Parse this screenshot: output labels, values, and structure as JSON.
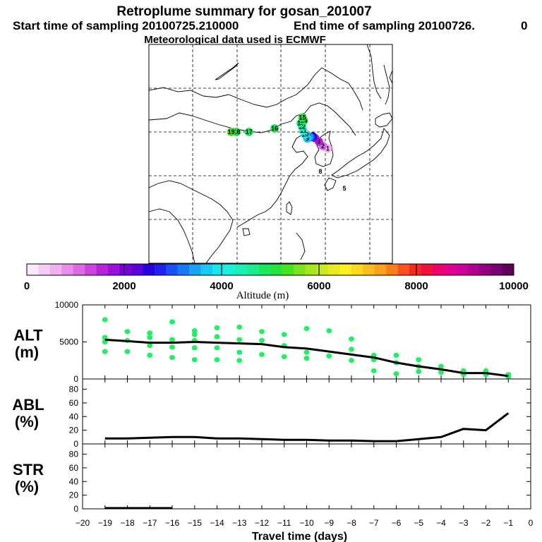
{
  "header": {
    "title": "Retroplume summary for gosan_201007",
    "start_time": "Start time of sampling 20100725.210000",
    "end_time": "End time of sampling 20100726.",
    "end_suffix": "0",
    "met_data": "Meteorological data used is ECMWF"
  },
  "map": {
    "trajectory_points": [
      {
        "label": "1",
        "lon": 130.4,
        "lat": 31.2,
        "alt": 600
      },
      {
        "label": "2",
        "lon": 129.3,
        "lat": 31.8,
        "alt": 1000
      },
      {
        "label": "3",
        "lon": 128.4,
        "lat": 32.8,
        "alt": 1500
      },
      {
        "label": "4",
        "lon": 127.5,
        "lat": 33.6,
        "alt": 1900
      },
      {
        "label": "5",
        "lon": 127.0,
        "lat": 34.0,
        "alt": 2400
      },
      {
        "label": "6",
        "lon": 126.6,
        "lat": 33.8,
        "alt": 3000
      },
      {
        "label": "7",
        "lon": 126.2,
        "lat": 33.9,
        "alt": 3400
      },
      {
        "label": "9",
        "lon": 125.8,
        "lat": 33.5,
        "alt": 3600
      },
      {
        "label": "10",
        "lon": 125.3,
        "lat": 34.4,
        "alt": 3900
      },
      {
        "label": "11",
        "lon": 124.9,
        "lat": 35.3,
        "alt": 4100
      },
      {
        "label": "12",
        "lon": 124.6,
        "lat": 36.2,
        "alt": 4500
      },
      {
        "label": "13",
        "lon": 124.3,
        "lat": 37.0,
        "alt": 4700
      },
      {
        "label": "14",
        "lon": 125.0,
        "lat": 37.6,
        "alt": 4900
      },
      {
        "label": "15",
        "lon": 124.7,
        "lat": 38.3,
        "alt": 5000
      },
      {
        "label": "16",
        "lon": 118.4,
        "lat": 35.8,
        "alt": 4800
      },
      {
        "label": "17",
        "lon": 112.6,
        "lat": 35.0,
        "alt": 4900
      },
      {
        "label": "18",
        "lon": 109.8,
        "lat": 35.0,
        "alt": 5100
      },
      {
        "label": "19",
        "lon": 108.6,
        "lat": 35.0,
        "alt": 5300
      }
    ],
    "extra_labels": [
      "8",
      "5"
    ]
  },
  "colorbar": {
    "tick_labels": [
      "0",
      "2000",
      "4000",
      "6000",
      "8000",
      "10000"
    ],
    "title": "Altitude (m)",
    "min": 0,
    "max": 10000,
    "colors": [
      "#fbe8fb",
      "#f5ccf5",
      "#efb0ef",
      "#e68fe9",
      "#db6ae3",
      "#cc44dd",
      "#b822d9",
      "#9b10d8",
      "#7a00d8",
      "#5c00d8",
      "#2a00dc",
      "#2222ee",
      "#1a50f5",
      "#1a78f5",
      "#1aa0f5",
      "#1ac8f5",
      "#1ae6f0",
      "#1af0dc",
      "#1af0b4",
      "#1aee8c",
      "#1ae85c",
      "#22e43c",
      "#48e21e",
      "#7ae21e",
      "#a6e61e",
      "#cce81e",
      "#eaea1e",
      "#fcf01e",
      "#fcd81e",
      "#fcbc1e",
      "#fca01e",
      "#fc7c1e",
      "#fc501e",
      "#f8281e",
      "#f0103c",
      "#ec006c",
      "#e00090",
      "#cc0098",
      "#b00090",
      "#920080",
      "#780070",
      "#5c0058"
    ]
  },
  "chart_data": [
    {
      "type": "line",
      "name": "ALT",
      "ylabel": "ALT",
      "yunit": "(m)",
      "x": [
        -19,
        -18,
        -17,
        -16,
        -15,
        -14,
        -13,
        -12,
        -11,
        -10,
        -9,
        -8,
        -7,
        -6,
        -5,
        -4,
        -3,
        -2,
        -1
      ],
      "y": [
        5300,
        5100,
        4900,
        4900,
        5000,
        4900,
        4800,
        4700,
        4300,
        4100,
        3700,
        3300,
        2900,
        2200,
        1700,
        1300,
        800,
        800,
        400
      ],
      "ylim": [
        0,
        10000
      ],
      "yticks": [
        "0",
        "5000",
        "10000"
      ],
      "scatter": [
        {
          "x": -19,
          "y": 8000
        },
        {
          "x": -19,
          "y": 5600
        },
        {
          "x": -19,
          "y": 5000
        },
        {
          "x": -19,
          "y": 3700
        },
        {
          "x": -18,
          "y": 6400
        },
        {
          "x": -18,
          "y": 5200
        },
        {
          "x": -18,
          "y": 3700
        },
        {
          "x": -17,
          "y": 6200
        },
        {
          "x": -17,
          "y": 5600
        },
        {
          "x": -17,
          "y": 4500
        },
        {
          "x": -17,
          "y": 3200
        },
        {
          "x": -16,
          "y": 7700
        },
        {
          "x": -16,
          "y": 5300
        },
        {
          "x": -16,
          "y": 4300
        },
        {
          "x": -16,
          "y": 2900
        },
        {
          "x": -15,
          "y": 6500
        },
        {
          "x": -15,
          "y": 6000
        },
        {
          "x": -15,
          "y": 5200
        },
        {
          "x": -15,
          "y": 4200
        },
        {
          "x": -15,
          "y": 2600
        },
        {
          "x": -14,
          "y": 6900
        },
        {
          "x": -14,
          "y": 5700
        },
        {
          "x": -14,
          "y": 4200
        },
        {
          "x": -14,
          "y": 2600
        },
        {
          "x": -13,
          "y": 7000
        },
        {
          "x": -13,
          "y": 5300
        },
        {
          "x": -13,
          "y": 3600
        },
        {
          "x": -13,
          "y": 2500
        },
        {
          "x": -12,
          "y": 6400
        },
        {
          "x": -12,
          "y": 5200
        },
        {
          "x": -12,
          "y": 3300
        },
        {
          "x": -11,
          "y": 6000
        },
        {
          "x": -11,
          "y": 4500
        },
        {
          "x": -11,
          "y": 3000
        },
        {
          "x": -10,
          "y": 6800
        },
        {
          "x": -10,
          "y": 3600
        },
        {
          "x": -10,
          "y": 2800
        },
        {
          "x": -9,
          "y": 6500
        },
        {
          "x": -9,
          "y": 3100
        },
        {
          "x": -8,
          "y": 5400
        },
        {
          "x": -8,
          "y": 2500
        },
        {
          "x": -8,
          "y": 4000
        },
        {
          "x": -7,
          "y": 3200
        },
        {
          "x": -7,
          "y": 2600
        },
        {
          "x": -7,
          "y": 1100
        },
        {
          "x": -6,
          "y": 3200
        },
        {
          "x": -6,
          "y": 2200
        },
        {
          "x": -6,
          "y": 700
        },
        {
          "x": -5,
          "y": 2600
        },
        {
          "x": -5,
          "y": 1700
        },
        {
          "x": -5,
          "y": 1000
        },
        {
          "x": -4,
          "y": 1700
        },
        {
          "x": -4,
          "y": 900
        },
        {
          "x": -3,
          "y": 1100
        },
        {
          "x": -3,
          "y": 600
        },
        {
          "x": -2,
          "y": 1100
        },
        {
          "x": -2,
          "y": 600
        },
        {
          "x": -1,
          "y": 600
        },
        {
          "x": -1,
          "y": 300
        }
      ]
    },
    {
      "type": "line",
      "name": "ABL",
      "ylabel": "ABL",
      "yunit": "(%)",
      "x": [
        -19,
        -18,
        -17,
        -16,
        -15,
        -14,
        -13,
        -12,
        -11,
        -10,
        -9,
        -8,
        -7,
        -6,
        -5,
        -4,
        -3,
        -2,
        -1
      ],
      "y": [
        8,
        8,
        9,
        10,
        10,
        8,
        8,
        7,
        6,
        6,
        5,
        5,
        4,
        4,
        7,
        10,
        22,
        20,
        45
      ],
      "ylim": [
        0,
        95
      ],
      "yticks": [
        "0",
        "20",
        "40",
        "60",
        "80"
      ]
    },
    {
      "type": "line",
      "name": "STR",
      "ylabel": "STR",
      "yunit": "(%)",
      "x": [
        -19,
        -18,
        -17,
        -16
      ],
      "y": [
        1,
        1,
        1,
        1
      ],
      "ylim": [
        0,
        95
      ],
      "yticks": [
        "0",
        "20",
        "40",
        "60",
        "80"
      ],
      "xlabel": "Travel time (days)",
      "xticks": [
        "−20",
        "−19",
        "−18",
        "−17",
        "−16",
        "−15",
        "−14",
        "−13",
        "−12",
        "−11",
        "−10",
        "−9",
        "−8",
        "−7",
        "−6",
        "−5",
        "−4",
        "−3",
        "−2",
        "−1",
        "0"
      ],
      "xlim": [
        -20,
        0
      ]
    }
  ]
}
